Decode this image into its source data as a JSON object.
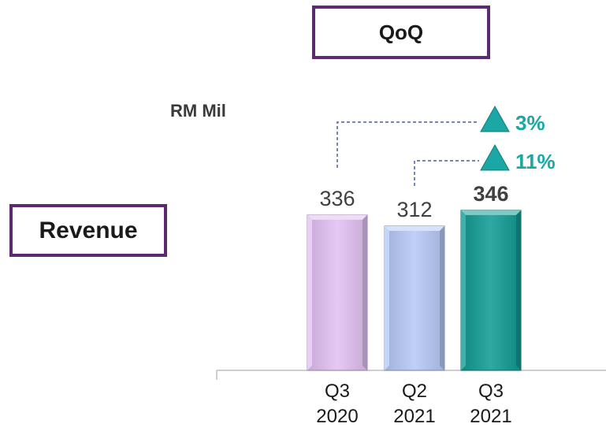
{
  "header": {
    "qoq_label": "QoQ"
  },
  "metric": {
    "label": "Revenue"
  },
  "chart_data": {
    "type": "bar",
    "ylabel": "RM Mil",
    "categories": [
      {
        "line1": "Q3",
        "line2": "2020"
      },
      {
        "line1": "Q2",
        "line2": "2021"
      },
      {
        "line1": "Q3",
        "line2": "2021"
      }
    ],
    "values": [
      336,
      312,
      346
    ],
    "value_labels": [
      "336",
      "312",
      "346"
    ],
    "highlight_index": 2,
    "colors": [
      "#e2c1f2",
      "#b7c9f7",
      "#139c95"
    ],
    "ylim": [
      0,
      346
    ],
    "changes": [
      {
        "from_index": 0,
        "to_index": 2,
        "label": "3%",
        "direction": "up"
      },
      {
        "from_index": 1,
        "to_index": 2,
        "label": "11%",
        "direction": "up"
      }
    ],
    "grid": false,
    "legend": "none"
  },
  "colors": {
    "accent_border": "#5b2a72",
    "change_color": "#1aa7a5"
  }
}
